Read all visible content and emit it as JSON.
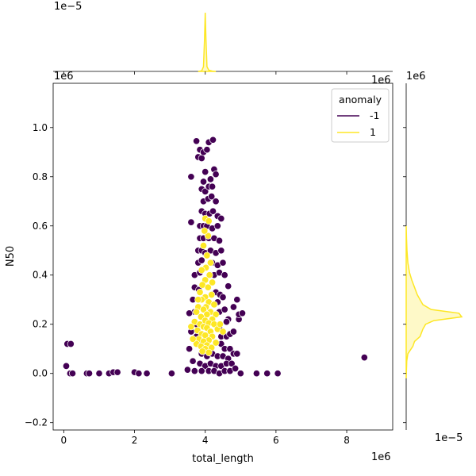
{
  "chart_data": {
    "type": "scatter",
    "subtype": "jointplot",
    "xlabel": "total_length",
    "ylabel": "N50",
    "x_scale_label": "1e6",
    "y_scale_label": "1e6",
    "marginal_x_scale_label": "1e−5",
    "marginal_y_scale_label": "1e−5",
    "xlim": [
      -0.3,
      9.3
    ],
    "ylim": [
      -0.23,
      1.18
    ],
    "xticks": [
      0,
      2,
      4,
      6,
      8
    ],
    "yticks": [
      -0.2,
      0.0,
      0.2,
      0.4,
      0.6,
      0.8,
      1.0
    ],
    "xtick_labels": [
      "0",
      "2",
      "4",
      "6",
      "8"
    ],
    "ytick_labels": [
      "−0.2",
      "0.0",
      "0.2",
      "0.4",
      "0.6",
      "0.8",
      "1.0"
    ],
    "legend": {
      "title": "anomaly",
      "position": "top-right",
      "entries": [
        {
          "label": "-1",
          "color": "#440154"
        },
        {
          "label": "1",
          "color": "#fde725"
        }
      ]
    },
    "series": [
      {
        "name": "-1",
        "color": "#440154",
        "points": [
          [
            0.1,
            0.12
          ],
          [
            0.2,
            0.12
          ],
          [
            0.07,
            0.03
          ],
          [
            0.18,
            0.0
          ],
          [
            0.25,
            0.0
          ],
          [
            0.65,
            0.0
          ],
          [
            0.72,
            0.0
          ],
          [
            1.0,
            0.0
          ],
          [
            1.28,
            0.0
          ],
          [
            1.4,
            0.005
          ],
          [
            1.52,
            0.005
          ],
          [
            2.0,
            0.005
          ],
          [
            2.12,
            0.0
          ],
          [
            2.35,
            0.0
          ],
          [
            3.05,
            0.0
          ],
          [
            5.0,
            0.0
          ],
          [
            5.45,
            0.0
          ],
          [
            5.75,
            0.0
          ],
          [
            6.05,
            0.0
          ],
          [
            8.5,
            0.065
          ],
          [
            3.6,
            0.8
          ],
          [
            3.6,
            0.615
          ],
          [
            3.75,
            0.945
          ],
          [
            3.85,
            0.91
          ],
          [
            3.8,
            0.88
          ],
          [
            3.9,
            0.875
          ],
          [
            3.95,
            0.9
          ],
          [
            4.05,
            0.91
          ],
          [
            4.1,
            0.94
          ],
          [
            4.22,
            0.95
          ],
          [
            4.0,
            0.82
          ],
          [
            3.95,
            0.78
          ],
          [
            4.15,
            0.79
          ],
          [
            4.25,
            0.83
          ],
          [
            4.3,
            0.81
          ],
          [
            3.9,
            0.75
          ],
          [
            4.0,
            0.74
          ],
          [
            4.1,
            0.76
          ],
          [
            4.2,
            0.76
          ],
          [
            3.95,
            0.7
          ],
          [
            4.08,
            0.71
          ],
          [
            4.18,
            0.72
          ],
          [
            4.3,
            0.7
          ],
          [
            3.9,
            0.66
          ],
          [
            4.0,
            0.65
          ],
          [
            4.12,
            0.65
          ],
          [
            4.22,
            0.66
          ],
          [
            4.35,
            0.64
          ],
          [
            3.85,
            0.6
          ],
          [
            3.95,
            0.6
          ],
          [
            4.05,
            0.6
          ],
          [
            4.2,
            0.59
          ],
          [
            4.35,
            0.6
          ],
          [
            4.45,
            0.63
          ],
          [
            3.85,
            0.55
          ],
          [
            3.95,
            0.55
          ],
          [
            4.1,
            0.55
          ],
          [
            4.25,
            0.55
          ],
          [
            4.4,
            0.54
          ],
          [
            3.8,
            0.5
          ],
          [
            3.9,
            0.5
          ],
          [
            4.0,
            0.49
          ],
          [
            4.15,
            0.5
          ],
          [
            4.3,
            0.49
          ],
          [
            4.45,
            0.5
          ],
          [
            3.8,
            0.45
          ],
          [
            3.9,
            0.46
          ],
          [
            4.2,
            0.45
          ],
          [
            4.35,
            0.44
          ],
          [
            4.5,
            0.45
          ],
          [
            3.7,
            0.4
          ],
          [
            3.85,
            0.41
          ],
          [
            4.25,
            0.4
          ],
          [
            4.4,
            0.41
          ],
          [
            4.55,
            0.4
          ],
          [
            3.7,
            0.35
          ],
          [
            3.82,
            0.34
          ],
          [
            4.3,
            0.33
          ],
          [
            4.42,
            0.32
          ],
          [
            4.65,
            0.355
          ],
          [
            3.65,
            0.3
          ],
          [
            4.35,
            0.29
          ],
          [
            4.5,
            0.31
          ],
          [
            3.7,
            0.25
          ],
          [
            4.4,
            0.25
          ],
          [
            4.55,
            0.26
          ],
          [
            4.65,
            0.22
          ],
          [
            3.75,
            0.2
          ],
          [
            4.4,
            0.19
          ],
          [
            4.6,
            0.21
          ],
          [
            3.75,
            0.15
          ],
          [
            4.45,
            0.15
          ],
          [
            4.6,
            0.15
          ],
          [
            4.7,
            0.16
          ],
          [
            4.8,
            0.17
          ],
          [
            3.8,
            0.12
          ],
          [
            4.45,
            0.12
          ],
          [
            4.55,
            0.1
          ],
          [
            4.7,
            0.1
          ],
          [
            3.9,
            0.08
          ],
          [
            4.05,
            0.07
          ],
          [
            4.2,
            0.08
          ],
          [
            4.35,
            0.07
          ],
          [
            4.5,
            0.07
          ],
          [
            4.65,
            0.06
          ],
          [
            4.8,
            0.08
          ],
          [
            4.9,
            0.08
          ],
          [
            3.85,
            0.04
          ],
          [
            4.0,
            0.03
          ],
          [
            4.15,
            0.04
          ],
          [
            4.3,
            0.03
          ],
          [
            4.45,
            0.03
          ],
          [
            4.6,
            0.04
          ],
          [
            4.75,
            0.04
          ],
          [
            3.9,
            0.01
          ],
          [
            4.1,
            0.01
          ],
          [
            4.25,
            0.01
          ],
          [
            4.4,
            0.0
          ],
          [
            4.55,
            0.01
          ],
          [
            4.7,
            0.01
          ],
          [
            4.85,
            0.02
          ],
          [
            4.95,
            0.22
          ],
          [
            4.95,
            0.24
          ],
          [
            5.05,
            0.245
          ],
          [
            4.9,
            0.3
          ],
          [
            4.8,
            0.27
          ],
          [
            3.55,
            0.245
          ],
          [
            3.6,
            0.17
          ],
          [
            3.55,
            0.1
          ],
          [
            3.65,
            0.05
          ],
          [
            3.5,
            0.015
          ],
          [
            3.7,
            0.01
          ]
        ]
      },
      {
        "name": "1",
        "color": "#fde725",
        "points": [
          [
            4.0,
            0.63
          ],
          [
            4.08,
            0.56
          ],
          [
            3.95,
            0.52
          ],
          [
            4.05,
            0.48
          ],
          [
            4.15,
            0.45
          ],
          [
            4.02,
            0.43
          ],
          [
            3.9,
            0.42
          ],
          [
            4.12,
            0.4
          ],
          [
            4.0,
            0.38
          ],
          [
            4.2,
            0.37
          ],
          [
            3.92,
            0.36
          ],
          [
            4.08,
            0.35
          ],
          [
            3.85,
            0.33
          ],
          [
            4.18,
            0.32
          ],
          [
            4.0,
            0.31
          ],
          [
            3.9,
            0.3
          ],
          [
            4.1,
            0.29
          ],
          [
            4.25,
            0.28
          ],
          [
            3.8,
            0.27
          ],
          [
            4.02,
            0.27
          ],
          [
            3.95,
            0.26
          ],
          [
            4.15,
            0.25
          ],
          [
            3.75,
            0.25
          ],
          [
            4.05,
            0.24
          ],
          [
            4.3,
            0.24
          ],
          [
            3.88,
            0.23
          ],
          [
            4.2,
            0.22
          ],
          [
            4.0,
            0.215
          ],
          [
            3.7,
            0.21
          ],
          [
            4.1,
            0.205
          ],
          [
            3.85,
            0.2
          ],
          [
            4.25,
            0.2
          ],
          [
            3.95,
            0.19
          ],
          [
            4.05,
            0.185
          ],
          [
            4.35,
            0.18
          ],
          [
            3.78,
            0.175
          ],
          [
            4.15,
            0.17
          ],
          [
            3.9,
            0.16
          ],
          [
            4.0,
            0.155
          ],
          [
            4.2,
            0.15
          ],
          [
            3.82,
            0.14
          ],
          [
            4.1,
            0.135
          ],
          [
            3.95,
            0.13
          ],
          [
            4.3,
            0.125
          ],
          [
            3.75,
            0.12
          ],
          [
            4.05,
            0.115
          ],
          [
            3.88,
            0.11
          ],
          [
            4.18,
            0.105
          ],
          [
            4.0,
            0.1
          ],
          [
            3.92,
            0.09
          ],
          [
            4.1,
            0.085
          ],
          [
            3.6,
            0.19
          ],
          [
            3.65,
            0.14
          ],
          [
            4.42,
            0.2
          ],
          [
            4.5,
            0.17
          ],
          [
            3.8,
            0.3
          ],
          [
            4.1,
            0.62
          ],
          [
            3.98,
            0.58
          ]
        ]
      }
    ],
    "marginal_x_density": {
      "series": "1",
      "x": [
        3.8,
        3.9,
        3.95,
        3.98,
        4.0,
        4.02,
        4.05,
        4.1,
        4.2,
        4.3
      ],
      "density": [
        0.0,
        0.01,
        0.08,
        0.55,
        1.0,
        0.55,
        0.08,
        0.02,
        0.005,
        0.0
      ]
    },
    "marginal_y_density": {
      "series": "1",
      "y": [
        -0.02,
        0.05,
        0.08,
        0.11,
        0.13,
        0.15,
        0.18,
        0.2,
        0.215,
        0.23,
        0.245,
        0.26,
        0.28,
        0.3,
        0.32,
        0.35,
        0.38,
        0.41,
        0.45,
        0.5,
        0.55,
        0.6
      ],
      "density": [
        0.0,
        0.01,
        0.03,
        0.12,
        0.15,
        0.25,
        0.3,
        0.35,
        0.5,
        1.0,
        0.95,
        0.45,
        0.3,
        0.25,
        0.2,
        0.15,
        0.1,
        0.06,
        0.03,
        0.015,
        0.005,
        0.0
      ]
    }
  }
}
